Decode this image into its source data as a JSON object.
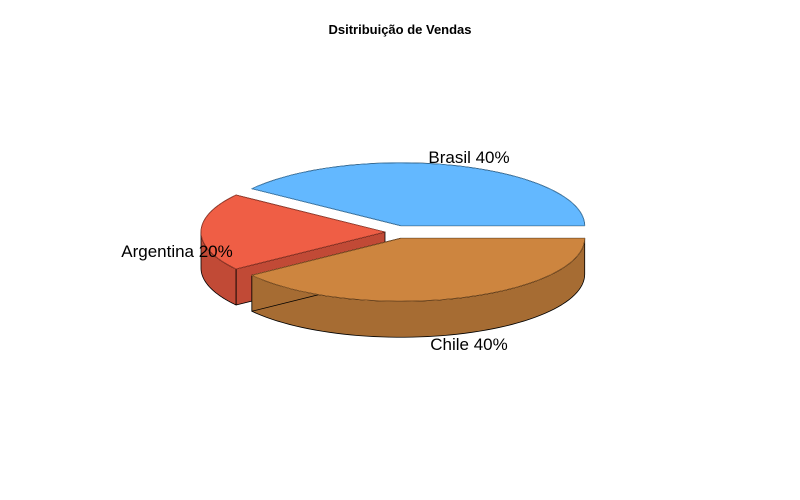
{
  "chart_data": {
    "type": "pie",
    "title": "Dsitribuição de Vendas",
    "three_d": true,
    "exploded": true,
    "start_angle_deg": 0,
    "direction": "counterclockwise",
    "slices": [
      {
        "label": "Brasil 40%",
        "category": "Brasil",
        "value": 40,
        "color": "#63b8ff",
        "side_color": "#4f9ad4"
      },
      {
        "label": "Argentina 20%",
        "category": "Argentina",
        "value": 20,
        "color": "#ef5e45",
        "side_color": "#c14a36"
      },
      {
        "label": "Chile 40%",
        "category": "Chile",
        "value": 40,
        "color": "#cd853f",
        "side_color": "#a66c33"
      }
    ]
  }
}
